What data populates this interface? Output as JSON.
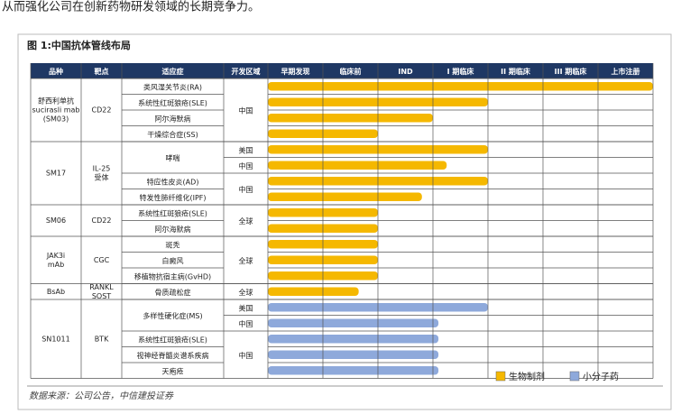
{
  "intro": "从而强化公司在创新药物研发领域的长期竞争力。",
  "title": "图 1:中国抗体管线布局",
  "headers": [
    "品种",
    "靶点",
    "适应症",
    "开发区域",
    "早期发现",
    "临床前",
    "IND",
    "I 期临床",
    "II 期临床",
    "III 期临床",
    "上市注册"
  ],
  "groups": [
    {
      "drug": [
        "舒西利单抗",
        "sucirasli mab",
        "(SM03)"
      ],
      "target": [
        "CD22"
      ],
      "color": "#f5b800",
      "rows": [
        {
          "indication": "类风湿关节炎(RA)",
          "region": "中国",
          "progress": 7
        },
        {
          "indication": "系统性红斑狼疮(SLE)",
          "region": null,
          "progress": 4
        },
        {
          "indication": "阿尔海默病",
          "region": null,
          "progress": 3
        },
        {
          "indication": "干燥综合症(SS)",
          "region": null,
          "progress": 2
        }
      ]
    },
    {
      "drug": [
        "SM17"
      ],
      "target": [
        "IL-25",
        "受体"
      ],
      "color": "#f5b800",
      "rows": [
        {
          "indication": "哮喘",
          "region": "美国",
          "progress": 4
        },
        {
          "indication": null,
          "region": "中国",
          "progress": 3.25
        },
        {
          "indication": "特应性皮炎(AD)",
          "region": "中国",
          "progress": 4
        },
        {
          "indication": "特发性肺纤维化(IPF)",
          "region": null,
          "progress": 2.8
        }
      ]
    },
    {
      "drug": [
        "SM06"
      ],
      "target": [
        "CD22"
      ],
      "color": "#f5b800",
      "rows": [
        {
          "indication": "系统性红斑狼疮(SLE)",
          "region": "全球",
          "progress": 2
        },
        {
          "indication": "阿尔海默病",
          "region": null,
          "progress": 2
        }
      ]
    },
    {
      "drug": [
        "JAK3i",
        "mAb"
      ],
      "target": [
        "CGC"
      ],
      "color": "#f5b800",
      "rows": [
        {
          "indication": "斑秃",
          "region": "全球",
          "progress": 2
        },
        {
          "indication": "白癜风",
          "region": null,
          "progress": 2
        },
        {
          "indication": "移植物抗宿主病(GvHD)",
          "region": null,
          "progress": 2
        }
      ]
    },
    {
      "drug": [
        "BsAb"
      ],
      "target": [
        "RANKL",
        "SOST"
      ],
      "color": "#f5b800",
      "rows": [
        {
          "indication": "骨质疏松症",
          "region": "全球",
          "progress": 1.65
        }
      ]
    },
    {
      "drug": [
        "SN1011"
      ],
      "target": [
        "BTK"
      ],
      "color": "#8ea9db",
      "rows": [
        {
          "indication": "多样性硬化症(MS)",
          "region": "美国",
          "progress": 4
        },
        {
          "indication": null,
          "region": "中国",
          "progress": 3.1
        },
        {
          "indication": "系统性红斑狼疮(SLE)",
          "region": "中国",
          "progress": 3.1
        },
        {
          "indication": "视神经脊髓炎谱系疾病",
          "region": null,
          "progress": 3.1
        },
        {
          "indication": "天疱疮",
          "region": null,
          "progress": 3.1
        }
      ]
    }
  ],
  "legend": [
    {
      "label": "生物制剂",
      "color": "#f5b800"
    },
    {
      "label": "小分子药",
      "color": "#8ea9db"
    }
  ],
  "source": "数据来源：公司公告，中信建投证券"
}
